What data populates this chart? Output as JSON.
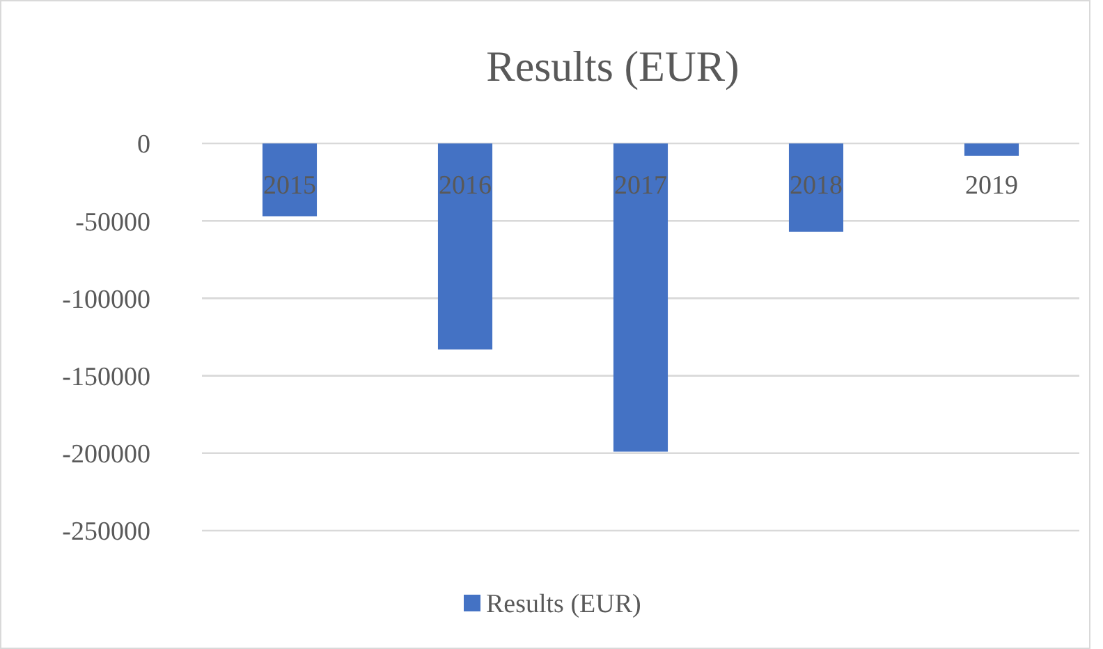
{
  "chart_data": {
    "type": "bar",
    "title": "Results (EUR)",
    "categories": [
      "2015",
      "2016",
      "2017",
      "2018",
      "2019"
    ],
    "series": [
      {
        "name": "Results (EUR)",
        "color": "#4472c4",
        "values": [
          -47000,
          -133000,
          -199000,
          -57000,
          -8000
        ]
      }
    ],
    "ylim": [
      -250000,
      0
    ],
    "yticks": [
      -250000,
      -200000,
      -150000,
      -100000,
      -50000,
      0
    ],
    "grid": "y",
    "legend": "bottom"
  }
}
